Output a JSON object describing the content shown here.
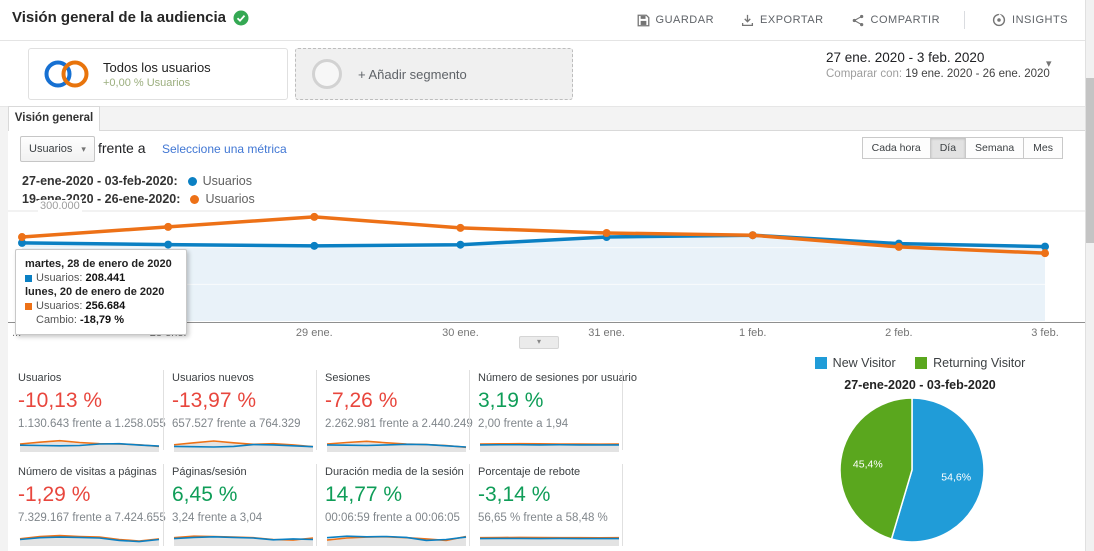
{
  "colors": {
    "blue": "#0b80c3",
    "orange": "#ed7117",
    "pie_blue": "#209cd8",
    "pie_green": "#5aa71e",
    "red": "#e8463d",
    "green": "#0f9d58",
    "link": "#4177d4",
    "segment_green": "#9bae7e",
    "badge_green": "#34a853",
    "area_fill": "#e9f2f9"
  },
  "header": {
    "title": "Visión general de la audiencia",
    "actions": [
      {
        "label": "GUARDAR",
        "icon": "save-icon"
      },
      {
        "label": "EXPORTAR",
        "icon": "download-icon"
      },
      {
        "label": "COMPARTIR",
        "icon": "share-icon"
      },
      {
        "label": "INSIGHTS",
        "icon": "insights-icon"
      }
    ]
  },
  "segments": {
    "all_users": {
      "title": "Todos los usuarios",
      "subtitle": "+0,00 % Usuarios"
    },
    "add_segment": {
      "label": "+ Añadir segmento"
    }
  },
  "date_range": {
    "primary": "27 ene. 2020 - 3 feb. 2020",
    "compare_prefix": "Comparar con:",
    "compare_value": "19 ene. 2020 - 26 ene. 2020"
  },
  "tab": {
    "label": "Visión general"
  },
  "controls": {
    "metric_select": "Usuarios",
    "versus": "frente a",
    "select_metric": "Seleccione una métrica",
    "granularity": [
      {
        "label": "Cada hora",
        "active": false
      },
      {
        "label": "Día",
        "active": true
      },
      {
        "label": "Semana",
        "active": false
      },
      {
        "label": "Mes",
        "active": false
      }
    ]
  },
  "legend": [
    {
      "range": "27-ene-2020 - 03-feb-2020:",
      "series": "Usuarios",
      "color": "#0b80c3"
    },
    {
      "range": "19-ene-2020 - 26-ene-2020:",
      "series": "Usuarios",
      "color": "#ed7117"
    }
  ],
  "tooltip": {
    "date1": "martes, 28 de enero de 2020",
    "metric1_label": "Usuarios:",
    "metric1_value": "208.441",
    "date2": "lunes, 20 de enero de 2020",
    "metric2_label": "Usuarios:",
    "metric2_value": "256.684",
    "change_label": "Cambio:",
    "change_value": "-18,79 %"
  },
  "chart_data": [
    {
      "type": "line",
      "x_labels": [
        "...",
        "28 ene.",
        "29 ene.",
        "30 ene.",
        "31 ene.",
        "1 feb.",
        "2 feb.",
        "3 feb."
      ],
      "y_gridline_label": "300.000",
      "ylim": [
        0,
        330000
      ],
      "grid": "horizontal",
      "legend_position": "top-left",
      "series": [
        {
          "name": "Usuarios (27-ene-2020 - 03-feb-2020)",
          "color": "#0b80c3",
          "area": true,
          "values": [
            213000,
            208441,
            205000,
            208000,
            229000,
            234000,
            211000,
            203000
          ]
        },
        {
          "name": "Usuarios (19-ene-2020 - 26-ene-2020)",
          "color": "#ed7117",
          "area": false,
          "values": [
            229000,
            256684,
            284000,
            254000,
            240000,
            234000,
            202000,
            185000
          ]
        }
      ]
    },
    {
      "type": "pie",
      "title": "27-ene-2020 - 03-feb-2020",
      "legend_position": "top",
      "slices": [
        {
          "label": "New Visitor",
          "value": 54.6,
          "display": "54,6%",
          "color": "#209cd8"
        },
        {
          "label": "Returning Visitor",
          "value": 45.4,
          "display": "45,4%",
          "color": "#5aa71e"
        }
      ]
    }
  ],
  "metrics": {
    "cards": [
      {
        "label": "Usuarios",
        "delta": "-10,13 %",
        "delta_color": "#e8463d",
        "detail": "1.130.643 frente a 1.258.055",
        "spark": {
          "orange": [
            0.5,
            0.62,
            0.72,
            0.6,
            0.52,
            0.5,
            0.45,
            0.34
          ],
          "blue": [
            0.42,
            0.4,
            0.38,
            0.4,
            0.5,
            0.52,
            0.43,
            0.36
          ]
        }
      },
      {
        "label": "Usuarios nuevos",
        "delta": "-13,97 %",
        "delta_color": "#e8463d",
        "detail": "657.527 frente a 764.329",
        "spark": {
          "orange": [
            0.45,
            0.58,
            0.7,
            0.58,
            0.48,
            0.52,
            0.44,
            0.32
          ],
          "blue": [
            0.34,
            0.32,
            0.3,
            0.34,
            0.46,
            0.44,
            0.38,
            0.32
          ]
        }
      },
      {
        "label": "Sesiones",
        "delta": "-7,26 %",
        "delta_color": "#e8463d",
        "detail": "2.262.981 frente a 2.440.249",
        "spark": {
          "orange": [
            0.5,
            0.6,
            0.68,
            0.58,
            0.5,
            0.46,
            0.4,
            0.28
          ],
          "blue": [
            0.44,
            0.42,
            0.4,
            0.44,
            0.48,
            0.46,
            0.38,
            0.3
          ]
        }
      },
      {
        "label": "Número de sesiones por usuario",
        "delta": "3,19 %",
        "delta_color": "#0f9d58",
        "detail": "2,00 frente a 1,94",
        "spark": {
          "orange": [
            0.5,
            0.51,
            0.52,
            0.51,
            0.5,
            0.5,
            0.49,
            0.5
          ],
          "blue": [
            0.44,
            0.45,
            0.45,
            0.44,
            0.45,
            0.44,
            0.44,
            0.44
          ]
        }
      },
      {
        "label": "Número de visitas a páginas",
        "delta": "-1,29 %",
        "delta_color": "#e8463d",
        "detail": "7.329.167 frente a 7.424.655",
        "spark": {
          "orange": [
            0.45,
            0.6,
            0.66,
            0.6,
            0.56,
            0.4,
            0.3,
            0.44
          ],
          "blue": [
            0.4,
            0.52,
            0.56,
            0.54,
            0.5,
            0.34,
            0.26,
            0.4
          ]
        }
      },
      {
        "label": "Páginas/sesión",
        "delta": "6,45 %",
        "delta_color": "#0f9d58",
        "detail": "3,24 frente a 3,04",
        "spark": {
          "orange": [
            0.52,
            0.62,
            0.6,
            0.56,
            0.52,
            0.4,
            0.36,
            0.5
          ],
          "blue": [
            0.46,
            0.54,
            0.58,
            0.54,
            0.5,
            0.38,
            0.44,
            0.4
          ]
        }
      },
      {
        "label": "Duración media de la sesión",
        "delta": "14,77 %",
        "delta_color": "#0f9d58",
        "detail": "00:06:59 frente a 00:06:05",
        "spark": {
          "orange": [
            0.36,
            0.5,
            0.56,
            0.58,
            0.52,
            0.44,
            0.34,
            0.6
          ],
          "blue": [
            0.52,
            0.62,
            0.58,
            0.6,
            0.54,
            0.34,
            0.4,
            0.56
          ]
        }
      },
      {
        "label": "Porcentaje de rebote",
        "delta": "-3,14 %",
        "delta_color": "#0f9d58",
        "detail": "56,65 % frente a 58,48 %",
        "spark": {
          "orange": [
            0.52,
            0.53,
            0.54,
            0.53,
            0.52,
            0.52,
            0.51,
            0.52
          ],
          "blue": [
            0.46,
            0.47,
            0.47,
            0.46,
            0.47,
            0.46,
            0.46,
            0.46
          ]
        }
      }
    ]
  }
}
